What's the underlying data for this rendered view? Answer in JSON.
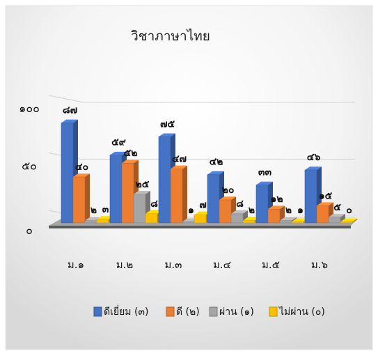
{
  "chart_data": {
    "type": "bar",
    "title": "วิชาภาษาไทย",
    "xlabel": "",
    "ylabel": "",
    "ylim": [
      0,
      100
    ],
    "y_ticks": [
      "๐",
      "๕๐",
      "๑๐๐"
    ],
    "grid": true,
    "legend_position": "bottom",
    "categories": [
      "ม.๑",
      "ม.๒",
      "ม.๓",
      "ม.๔",
      "ม.๕",
      "ม.๖"
    ],
    "series": [
      {
        "name": "ดีเยี่ยม (๓)",
        "color": "#4472C4",
        "values": [
          87,
          59,
          75,
          42,
          33,
          46
        ],
        "labels": [
          "๘๗",
          "๕๙",
          "๗๕",
          "๔๒",
          "๓๓",
          "๔๖"
        ]
      },
      {
        "name": "ดี (๒)",
        "color": "#ED7D31",
        "values": [
          40,
          52,
          47,
          20,
          12,
          15
        ],
        "labels": [
          "๔๐",
          "๕๒",
          "๔๗",
          "๒๐",
          "๑๒",
          "๑๕"
        ]
      },
      {
        "name": "ผ่าน (๑)",
        "color": "#A5A5A5",
        "values": [
          2,
          25,
          1,
          8,
          2,
          5
        ],
        "labels": [
          "๒",
          "๒๕",
          "๑",
          "๘",
          "๒",
          "๕"
        ]
      },
      {
        "name": "ไม่ผ่าน (๐)",
        "color": "#FFC000",
        "values": [
          3,
          8,
          7,
          2,
          1,
          0
        ],
        "labels": [
          "๓",
          "๘",
          "๗",
          "๒",
          "๑",
          "๐"
        ]
      }
    ]
  }
}
